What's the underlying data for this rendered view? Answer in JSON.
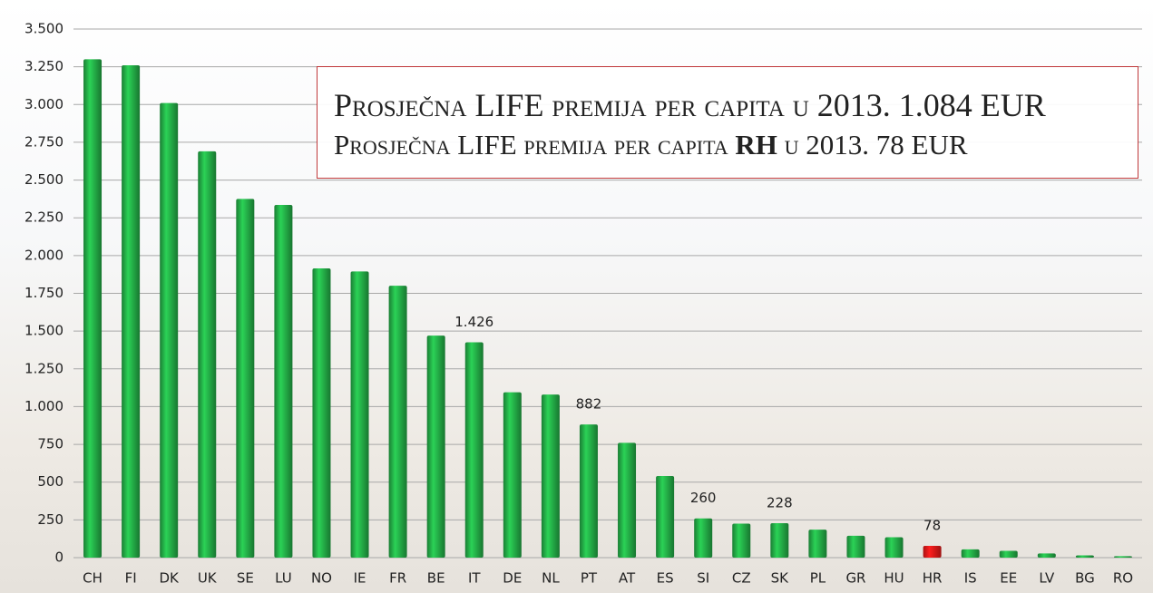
{
  "chart_data": {
    "type": "bar",
    "annotations": {
      "line1": "Prosječna LIFE premija per capita u 2013. 1.084 EUR",
      "line2_parts": [
        "Prosječna LIFE premija per capita ",
        "RH",
        " u 2013. 78 EUR"
      ]
    },
    "categories": [
      "CH",
      "FI",
      "DK",
      "UK",
      "SE",
      "LU",
      "NO",
      "IE",
      "FR",
      "BE",
      "IT",
      "DE",
      "NL",
      "PT",
      "AT",
      "ES",
      "SI",
      "CZ",
      "SK",
      "PL",
      "GR",
      "HU",
      "HR",
      "IS",
      "EE",
      "LV",
      "BG",
      "RO"
    ],
    "values": [
      3300,
      3260,
      3010,
      2690,
      2375,
      2335,
      1915,
      1895,
      1800,
      1470,
      1426,
      1095,
      1080,
      882,
      760,
      540,
      260,
      225,
      228,
      185,
      145,
      135,
      78,
      55,
      45,
      28,
      15,
      10
    ],
    "value_labels": [
      null,
      null,
      null,
      null,
      null,
      null,
      null,
      null,
      null,
      null,
      "1.426",
      null,
      null,
      "882",
      null,
      null,
      "260",
      null,
      "228",
      null,
      null,
      null,
      "78",
      null,
      null,
      null,
      null,
      null
    ],
    "colors": [
      "#22a845",
      "#22a845",
      "#22a845",
      "#22a845",
      "#22a845",
      "#22a845",
      "#22a845",
      "#22a845",
      "#22a845",
      "#22a845",
      "#22a845",
      "#22a845",
      "#22a845",
      "#22a845",
      "#22a845",
      "#22a845",
      "#22a845",
      "#22a845",
      "#22a845",
      "#22a845",
      "#22a845",
      "#22a845",
      "#e01818",
      "#22a845",
      "#22a845",
      "#22a845",
      "#22a845",
      "#22a845"
    ],
    "ylim": [
      0,
      3500
    ],
    "yticks": [
      0,
      250,
      500,
      750,
      {
        "value": 1000,
        "label": "1.000"
      },
      {
        "value": 1250,
        "label": "1.250"
      },
      {
        "value": 1500,
        "label": "1.500"
      },
      {
        "value": 1750,
        "label": "1.750"
      },
      {
        "value": 2000,
        "label": "2.000"
      },
      {
        "value": 2250,
        "label": "2.250"
      },
      {
        "value": 2500,
        "label": "2.500"
      },
      {
        "value": 2750,
        "label": "2.750"
      },
      {
        "value": 3000,
        "label": "3.000"
      },
      {
        "value": 3250,
        "label": "3.250"
      },
      {
        "value": 3500,
        "label": "3.500"
      }
    ],
    "grid": true
  }
}
